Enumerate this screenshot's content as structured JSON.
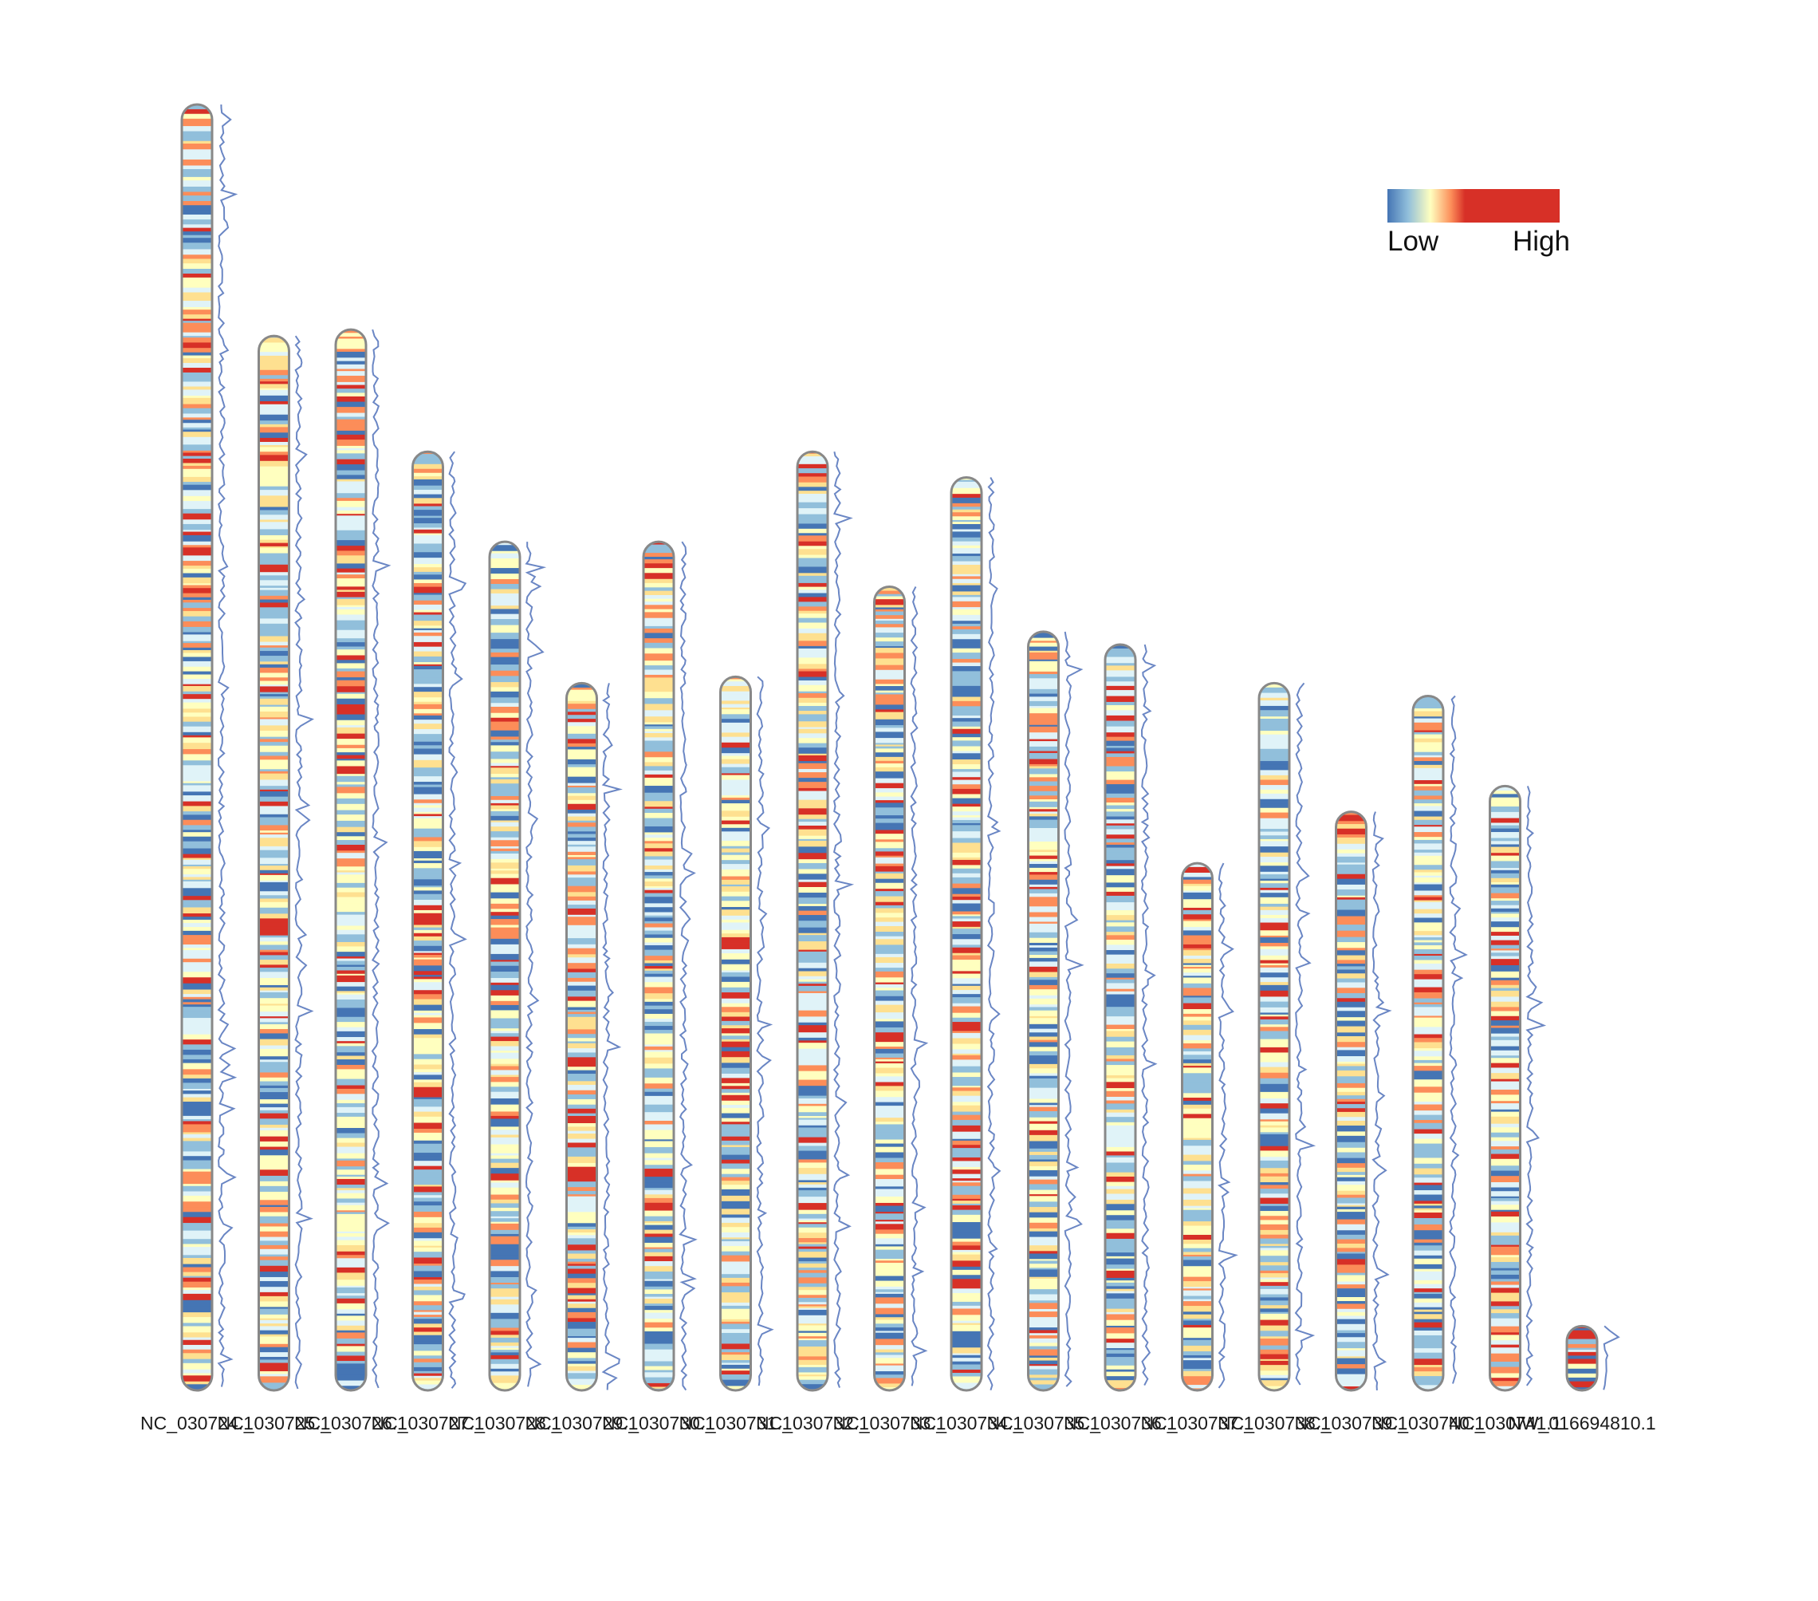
{
  "chart_data": {
    "type": "heatmap",
    "subtype": "chromosome-density-ideogram",
    "title": "",
    "xlabel": "",
    "ylabel": "",
    "chromosomes": [
      {
        "name": "NC_030724.1",
        "relative_length": 1.0
      },
      {
        "name": "NC_030725.1",
        "relative_length": 0.82
      },
      {
        "name": "NC_030726.1",
        "relative_length": 0.825
      },
      {
        "name": "NC_030727.1",
        "relative_length": 0.73
      },
      {
        "name": "NC_030728.1",
        "relative_length": 0.66
      },
      {
        "name": "NC_030729.1",
        "relative_length": 0.55
      },
      {
        "name": "NC_030730.1",
        "relative_length": 0.66
      },
      {
        "name": "NC_030731.1",
        "relative_length": 0.555
      },
      {
        "name": "NC_030732.1",
        "relative_length": 0.73
      },
      {
        "name": "NC_030733.1",
        "relative_length": 0.625
      },
      {
        "name": "NC_030734.1",
        "relative_length": 0.71
      },
      {
        "name": "NC_030735.1",
        "relative_length": 0.59
      },
      {
        "name": "NC_030736.1",
        "relative_length": 0.58
      },
      {
        "name": "NC_030737.1",
        "relative_length": 0.41
      },
      {
        "name": "NC_030738.1",
        "relative_length": 0.55
      },
      {
        "name": "NC_030739.1",
        "relative_length": 0.45
      },
      {
        "name": "NC_030740.1",
        "relative_length": 0.54
      },
      {
        "name": "NC_030741.1",
        "relative_length": 0.47
      },
      {
        "name": "NW_016694810.1",
        "relative_length": 0.05
      }
    ],
    "legend": {
      "low_label": "Low",
      "high_label": "High",
      "placement": "top-right"
    },
    "colors": {
      "scale": [
        "#4575b4",
        "#91bfdb",
        "#e0f3f8",
        "#ffffbf",
        "#fee090",
        "#fc8d59",
        "#d73027"
      ],
      "outline": "#888888",
      "density_line": "#6a86c4"
    }
  }
}
